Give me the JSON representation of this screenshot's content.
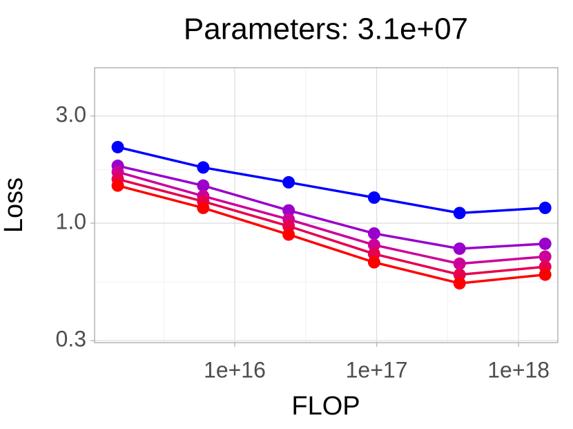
{
  "chart_data": {
    "type": "line",
    "title": "Parameters: 3.1e+07",
    "x_label": "FLOP",
    "y_label": "Loss",
    "x": [
      1500000000000000.0,
      6000000000000000.0,
      2.4e+16,
      9.6e+16,
      3.84e+17,
      1.54e+18
    ],
    "series": [
      {
        "color": "#0000ff",
        "values": [
          2.18,
          1.77,
          1.52,
          1.3,
          1.11,
          1.17
        ]
      },
      {
        "color": "#9900cc",
        "values": [
          1.8,
          1.47,
          1.14,
          0.9,
          0.77,
          0.81
        ]
      },
      {
        "color": "#cc0099",
        "values": [
          1.69,
          1.32,
          1.04,
          0.8,
          0.66,
          0.71
        ]
      },
      {
        "color": "#e6004d",
        "values": [
          1.57,
          1.25,
          0.97,
          0.73,
          0.59,
          0.64
        ]
      },
      {
        "color": "#ff0000",
        "values": [
          1.47,
          1.17,
          0.89,
          0.67,
          0.54,
          0.59
        ]
      }
    ],
    "x_log": true,
    "y_log": true,
    "xlim": [
      1030000000000000.0,
      1.89e+18
    ],
    "ylim": [
      0.294,
      4.92
    ],
    "xticks": [
      {
        "value": 1e+16,
        "label": "1e+16"
      },
      {
        "value": 1e+17,
        "label": "1e+17"
      },
      {
        "value": 1e+18,
        "label": "1e+18"
      }
    ],
    "yticks": [
      0.3,
      {
        "value": 1,
        "label": "1.0"
      },
      {
        "value": 3,
        "label": "3.0"
      }
    ],
    "grid": true,
    "minor_grid": true
  }
}
